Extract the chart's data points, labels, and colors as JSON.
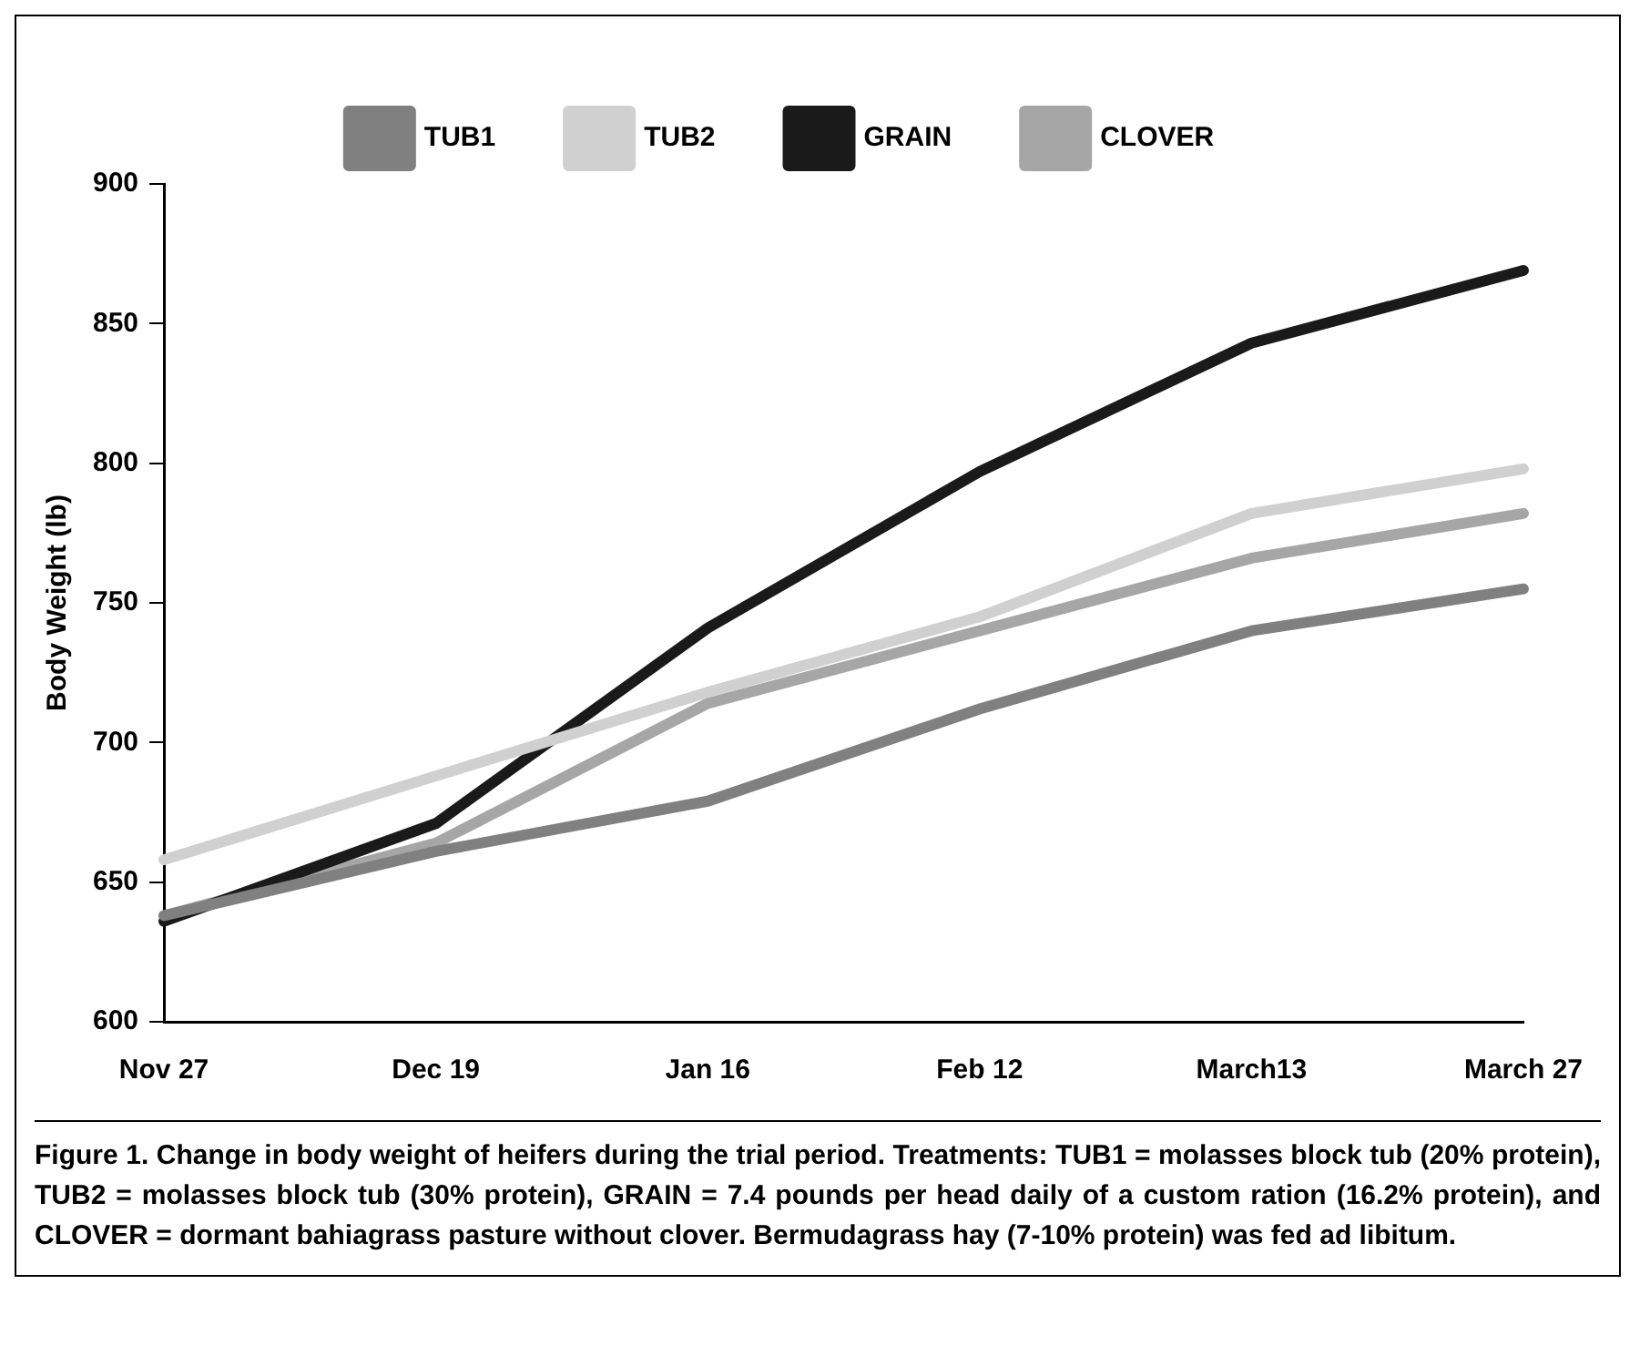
{
  "chart_data": {
    "type": "line",
    "ylabel": "Body Weight (lb)",
    "categories": [
      "Nov 27",
      "Dec 19",
      "Jan 16",
      "Feb 12",
      "March13",
      "March 27"
    ],
    "series": [
      {
        "name": "TUB1",
        "color": "#808080",
        "values": [
          638,
          661,
          679,
          712,
          740,
          755
        ]
      },
      {
        "name": "TUB2",
        "color": "#d0d0d0",
        "values": [
          658,
          688,
          718,
          745,
          782,
          798
        ]
      },
      {
        "name": "GRAIN",
        "color": "#1a1a1a",
        "values": [
          636,
          671,
          741,
          797,
          843,
          869
        ]
      },
      {
        "name": "CLOVER",
        "color": "#a6a6a6",
        "values": [
          638,
          664,
          714,
          740,
          766,
          782
        ]
      }
    ],
    "ylim": [
      600,
      900
    ],
    "yticks": [
      600,
      650,
      700,
      750,
      800,
      850,
      900
    ],
    "grid": false,
    "legend": "top",
    "marker": "none",
    "line_style": "solid",
    "annotations": [
      "Figure 1. Change in body weight of heifers during the trial period. Treatments: TUB1 = molasses block tub (20% protein), TUB2 = molasses block tub (30% protein), GRAIN = 7.4 pounds per head daily of a custom ration (16.2% protein), and CLOVER = dormant bahiagrass pasture without clover. Bermudagrass hay (7-10% protein) was fed ad libitum."
    ]
  }
}
